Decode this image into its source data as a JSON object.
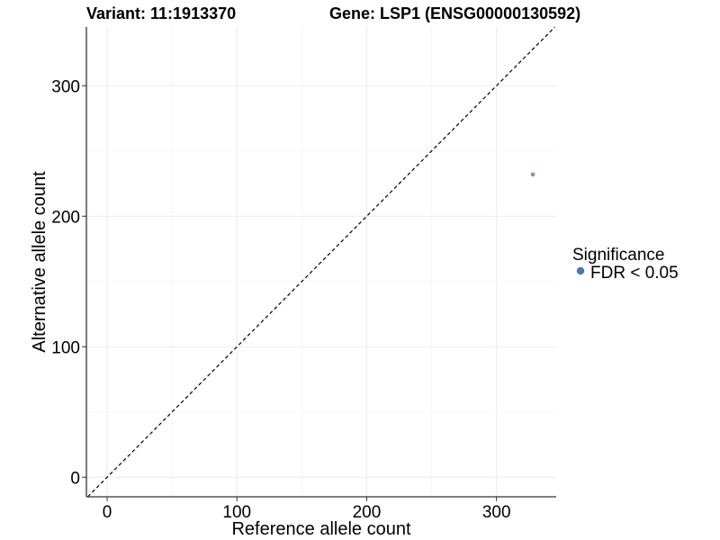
{
  "chart_data": {
    "type": "scatter",
    "title_left": "Variant: 11:1913370",
    "title_right": "Gene: LSP1 (ENSG00000130592)",
    "xlabel": "Reference allele count",
    "ylabel": "Alternative allele count",
    "xlim": [
      -16,
      346
    ],
    "ylim": [
      -15,
      345
    ],
    "xticks": [
      0,
      100,
      200,
      300
    ],
    "yticks": [
      0,
      100,
      200,
      300
    ],
    "grid": true,
    "reference_line": "y = x (dashed)",
    "legend": {
      "title": "Significance",
      "placement": "right",
      "entries": [
        {
          "label": "FDR < 0.05",
          "color": "#4a77aa"
        }
      ]
    },
    "points": [
      {
        "x": 328,
        "y": 232,
        "group": "FDR < 0.05",
        "color": "#7f9bb5"
      }
    ]
  }
}
